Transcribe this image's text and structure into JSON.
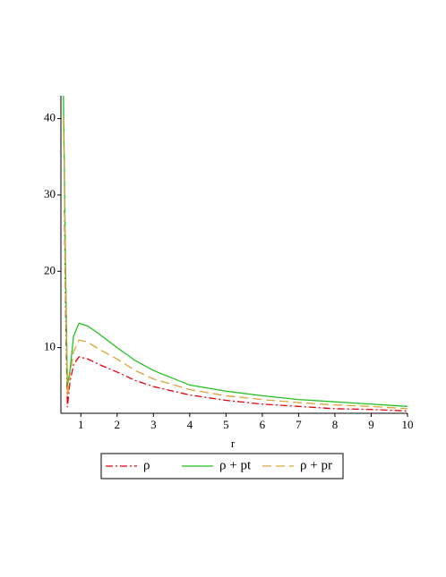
{
  "chart_data": {
    "type": "line",
    "x_label": "r",
    "x": [
      0.52,
      0.55,
      0.58,
      0.63,
      0.7,
      0.8,
      0.95,
      1.2,
      1.5,
      2,
      2.5,
      3,
      4,
      5,
      6,
      7,
      8,
      9,
      10
    ],
    "series": [
      {
        "name": "ρ",
        "color": "#e8000b",
        "style": "dashdot",
        "values": [
          null,
          28,
          15,
          2.2,
          5.5,
          7.8,
          8.8,
          8.5,
          7.8,
          6.8,
          5.7,
          4.9,
          3.8,
          3.1,
          2.6,
          2.3,
          2.0,
          1.9,
          1.7
        ]
      },
      {
        "name": "ρ + pt",
        "color": "#22c11f",
        "style": "solid",
        "values": [
          43,
          32,
          20,
          5,
          7,
          11.5,
          13.2,
          12.8,
          11.8,
          10,
          8.3,
          7.0,
          5.1,
          4.3,
          3.7,
          3.2,
          2.9,
          2.6,
          2.3
        ]
      },
      {
        "name": "ρ + pr",
        "color": "#d9a43a",
        "style": "dash",
        "values": [
          40,
          30,
          17,
          3.5,
          6.5,
          9.5,
          11,
          10.7,
          9.8,
          8.5,
          7,
          5.9,
          4.5,
          3.7,
          3.2,
          2.8,
          2.5,
          2.3,
          2.0
        ]
      }
    ],
    "xlim": [
      0.5,
      10
    ],
    "ylim": [
      1.4,
      43
    ],
    "xticks": [
      1,
      2,
      3,
      4,
      5,
      6,
      7,
      8,
      9,
      10
    ],
    "yticks": [
      10,
      20,
      30,
      40
    ],
    "grid": false
  }
}
